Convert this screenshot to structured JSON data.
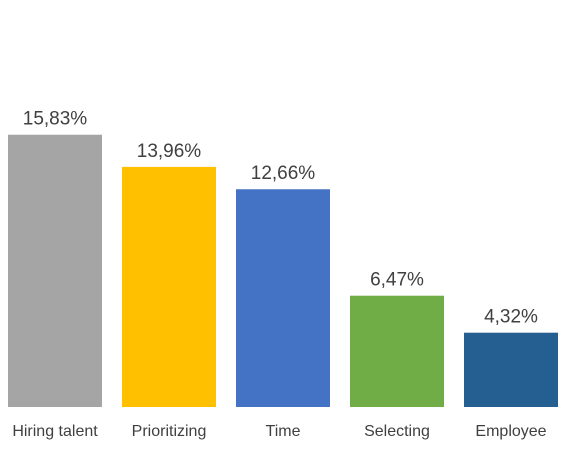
{
  "chart_data": {
    "type": "bar",
    "categories": [
      "Hiring talent",
      "Prioritizing",
      "Time",
      "Selecting",
      "Employee"
    ],
    "values": [
      15.83,
      13.96,
      12.66,
      6.47,
      4.32
    ],
    "value_labels": [
      "15,83%",
      "13,96%",
      "12,66%",
      "6,47%",
      "4,32%"
    ],
    "unit": "%",
    "ylim": [
      0,
      16
    ],
    "grid": false,
    "legend": "none",
    "bar_colors": [
      "#A5A5A5",
      "#FFC000",
      "#4472C4",
      "#70AD47",
      "#255E91"
    ],
    "label_color": "#404040"
  }
}
